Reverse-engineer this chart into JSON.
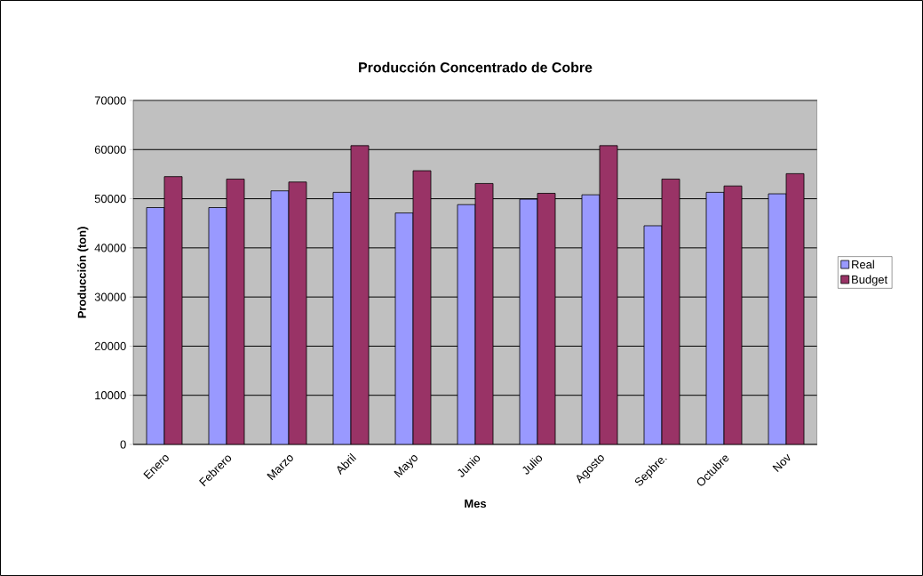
{
  "chart_data": {
    "type": "bar",
    "title": "Producción Concentrado de Cobre",
    "xlabel": "Mes",
    "ylabel": "Producción (ton)",
    "categories": [
      "Enero",
      "Febrero",
      "Marzo",
      "Abril",
      "Mayo",
      "Junio",
      "Julio",
      "Agosto",
      "Sepbre.",
      "Octubre",
      "Nov"
    ],
    "series": [
      {
        "name": "Real",
        "color": "#9999ff",
        "values": [
          48200,
          48200,
          51600,
          51300,
          47100,
          48800,
          49900,
          50800,
          44500,
          51300,
          51000
        ]
      },
      {
        "name": "Budget",
        "color": "#993366",
        "values": [
          54500,
          54000,
          53400,
          60800,
          55700,
          53100,
          51100,
          60800,
          54000,
          52600,
          55100
        ]
      }
    ],
    "ylim": [
      0,
      70000
    ],
    "yticks": [
      0,
      10000,
      20000,
      30000,
      40000,
      50000,
      60000,
      70000
    ],
    "grid": "y",
    "legend": "right"
  }
}
